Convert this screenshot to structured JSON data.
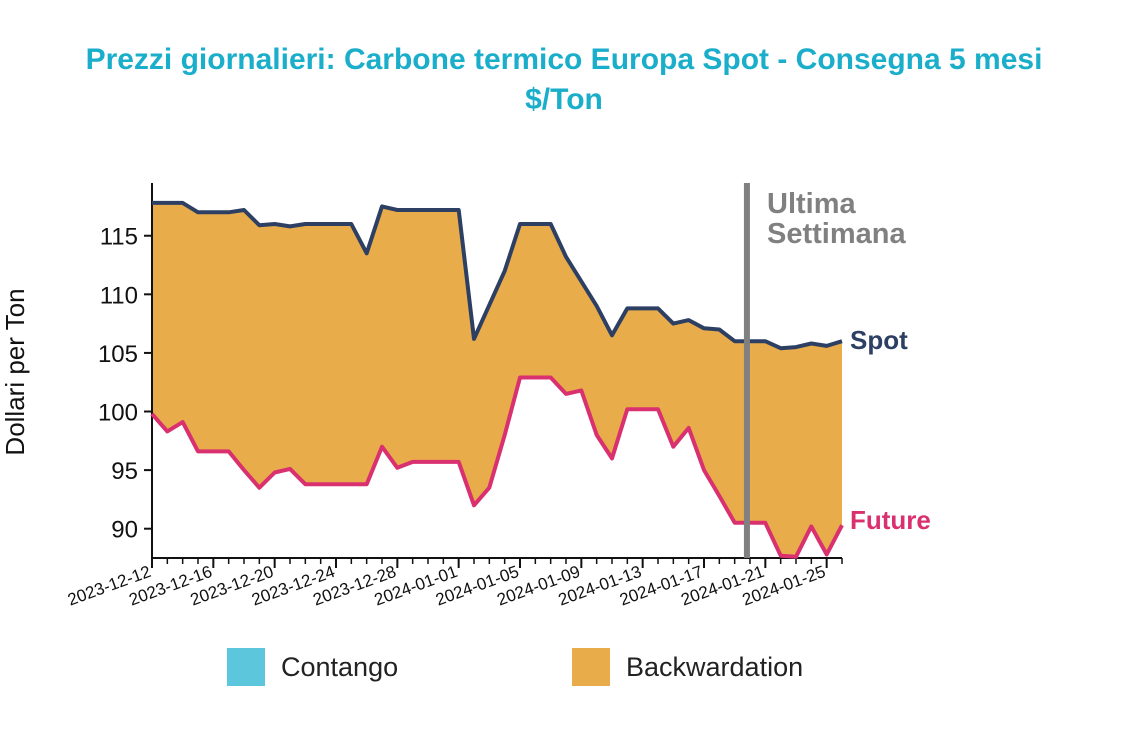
{
  "chart_data": {
    "type": "area",
    "title": "Prezzi giornalieri: Carbone termico Europa Spot - Consegna 5 mesi",
    "subtitle": "$/Ton",
    "ylabel": "Dollari per Ton",
    "xlabel": "",
    "ylim": [
      87.5,
      119.5
    ],
    "yticks": [
      90,
      95,
      100,
      105,
      110,
      115
    ],
    "x_range": [
      "2023-12-12",
      "2024-01-26"
    ],
    "xticks": [
      "2023-12-12",
      "2023-12-16",
      "2023-12-20",
      "2023-12-24",
      "2023-12-28",
      "2024-01-01",
      "2024-01-05",
      "2024-01-09",
      "2024-01-13",
      "2024-01-17",
      "2024-01-21",
      "2024-01-25"
    ],
    "vline": {
      "date": "2024-01-19.8",
      "label_line1": "Ultima",
      "label_line2": "Settimana"
    },
    "series": [
      {
        "name": "Spot",
        "color": "#2d4063",
        "x": [
          "2023-12-12",
          "2023-12-14",
          "2023-12-15",
          "2023-12-17",
          "2023-12-18",
          "2023-12-19",
          "2023-12-20",
          "2023-12-21",
          "2023-12-22",
          "2023-12-25",
          "2023-12-26",
          "2023-12-27",
          "2023-12-28",
          "2023-12-29",
          "2024-01-01",
          "2024-01-02",
          "2024-01-04",
          "2024-01-05",
          "2024-01-07",
          "2024-01-08",
          "2024-01-10",
          "2024-01-11",
          "2024-01-12",
          "2024-01-14",
          "2024-01-15",
          "2024-01-16",
          "2024-01-17",
          "2024-01-18",
          "2024-01-19",
          "2024-01-21",
          "2024-01-22",
          "2024-01-23",
          "2024-01-24",
          "2024-01-25",
          "2024-01-26"
        ],
        "values": [
          117.8,
          117.8,
          117.0,
          117.0,
          117.2,
          115.9,
          116.0,
          115.8,
          116.0,
          116.0,
          113.5,
          117.5,
          117.2,
          117.2,
          117.2,
          106.2,
          112.0,
          116.0,
          116.0,
          113.2,
          109.0,
          106.5,
          108.8,
          108.8,
          107.5,
          107.8,
          107.1,
          107.0,
          106.0,
          106.0,
          105.4,
          105.5,
          105.8,
          105.6,
          106.0
        ]
      },
      {
        "name": "Future",
        "color": "#d9306f",
        "x": [
          "2023-12-12",
          "2023-12-13",
          "2023-12-14",
          "2023-12-15",
          "2023-12-17",
          "2023-12-18",
          "2023-12-19",
          "2023-12-20",
          "2023-12-21",
          "2023-12-22",
          "2023-12-25",
          "2023-12-26",
          "2023-12-27",
          "2023-12-28",
          "2023-12-29",
          "2024-01-01",
          "2024-01-02",
          "2024-01-03",
          "2024-01-04",
          "2024-01-05",
          "2024-01-07",
          "2024-01-08",
          "2024-01-09",
          "2024-01-10",
          "2024-01-11",
          "2024-01-12",
          "2024-01-14",
          "2024-01-15",
          "2024-01-16",
          "2024-01-17",
          "2024-01-18",
          "2024-01-19",
          "2024-01-21",
          "2024-01-22",
          "2024-01-23",
          "2024-01-24",
          "2024-01-25",
          "2024-01-26"
        ],
        "values": [
          99.8,
          98.3,
          99.1,
          96.6,
          96.6,
          95.0,
          93.5,
          94.8,
          95.1,
          93.8,
          93.8,
          93.8,
          97.0,
          95.2,
          95.7,
          95.7,
          92.0,
          93.5,
          98.0,
          102.9,
          102.9,
          101.5,
          101.8,
          98.0,
          96.0,
          100.2,
          100.2,
          97.0,
          98.6,
          95.0,
          92.8,
          90.5,
          90.5,
          87.7,
          87.6,
          90.2,
          87.8,
          90.3
        ]
      }
    ],
    "legend": [
      {
        "label": "Contango",
        "color": "#5bc6dc"
      },
      {
        "label": "Backwardation",
        "color": "#e9ac4b"
      }
    ],
    "legend_position": "bottom",
    "grid": false
  }
}
